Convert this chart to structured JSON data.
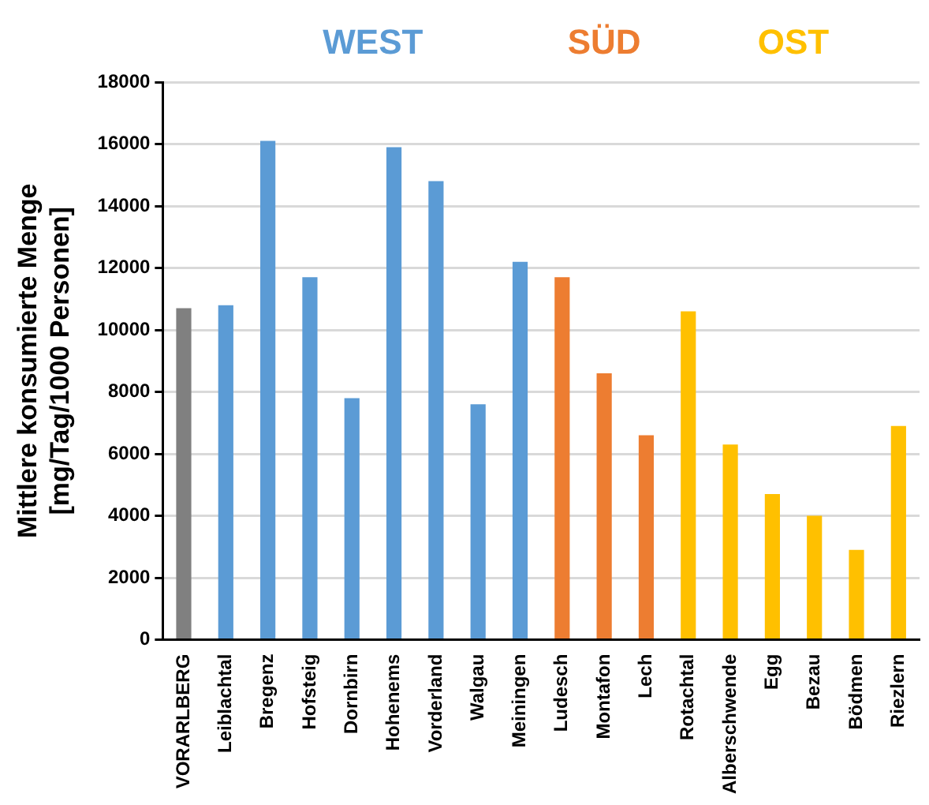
{
  "chart_data": {
    "type": "bar",
    "ylabel": "Mittlere konsumierte Menge\n[mg/Tag/1000 Personen]",
    "categories": [
      "VORARLBERG",
      "Leiblachtal",
      "Bregenz",
      "Hofsteig",
      "Dornbirn",
      "Hohenems",
      "Vorderland",
      "Walgau",
      "Meiningen",
      "Ludesch",
      "Montafon",
      "Lech",
      "Rotachtal",
      "Alberschwende",
      "Egg",
      "Bezau",
      "Bödmen",
      "Riezlern"
    ],
    "series": [
      {
        "color": "#808080",
        "values": [
          10700,
          null,
          null,
          null,
          null,
          null,
          null,
          null,
          null,
          null,
          null,
          null,
          null,
          null,
          null,
          null,
          null,
          null
        ]
      },
      {
        "name": "WEST",
        "color": "#5b9bd5",
        "values": [
          null,
          10800,
          16100,
          11700,
          7800,
          15900,
          14800,
          7600,
          12200,
          null,
          null,
          null,
          null,
          null,
          null,
          null,
          null,
          null
        ]
      },
      {
        "name": "SÜD",
        "color": "#ed7d31",
        "values": [
          null,
          null,
          null,
          null,
          null,
          null,
          null,
          null,
          null,
          11700,
          8600,
          6600,
          null,
          null,
          null,
          null,
          null,
          null
        ]
      },
      {
        "name": "OST",
        "color": "#ffc000",
        "values": [
          null,
          null,
          null,
          null,
          null,
          null,
          null,
          null,
          null,
          null,
          null,
          null,
          10600,
          6300,
          4700,
          4000,
          2900,
          6900
        ]
      }
    ],
    "ylim": [
      0,
      18000
    ],
    "yticks": [
      0,
      2000,
      4000,
      6000,
      8000,
      10000,
      12000,
      14000,
      16000,
      18000
    ],
    "grid": "y",
    "legend": "top"
  }
}
